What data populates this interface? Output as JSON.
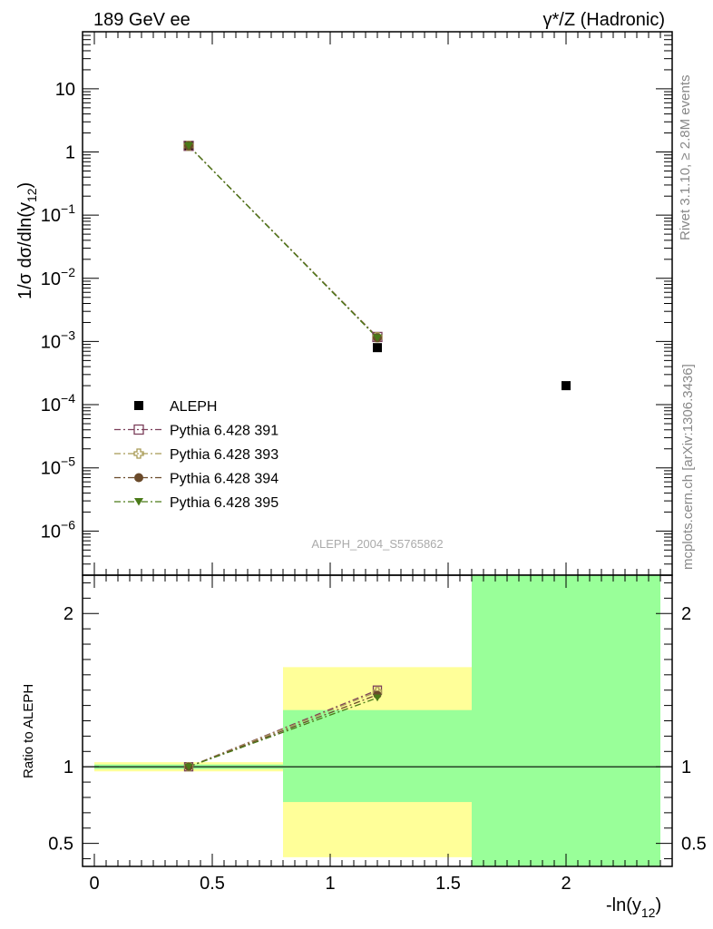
{
  "header": {
    "left_title": "189 GeV ee",
    "right_title": "γ*/Z (Hadronic)"
  },
  "side_text": {
    "rivet": "Rivet 3.1.10, ≥ 2.8M events",
    "mcplots": "mcplots.cern.ch [arXiv:1306.3436]"
  },
  "watermark": "ALEPH_2004_S5765862",
  "chart_data": [
    {
      "type": "scatter",
      "panel": "main",
      "ylabel": "1/σ dσ/dln(y12)",
      "xlabel": "",
      "yscale": "log",
      "xlim": [
        -0.05,
        2.45
      ],
      "ylim": [
        2e-07,
        80
      ],
      "y_ticks": [
        "10^-6",
        "10^-5",
        "10^-4",
        "10^-3",
        "10^-2",
        "10^-1",
        "1",
        "10"
      ],
      "legend_position": "left-middle",
      "series": [
        {
          "name": "ALEPH",
          "color": "#000000",
          "marker": "square-filled",
          "points": [
            {
              "x": 0.4,
              "y": 1.25
            },
            {
              "x": 1.2,
              "y": 0.0008
            },
            {
              "x": 2.0,
              "y": 0.0002
            }
          ]
        },
        {
          "name": "Pythia 6.428 391",
          "color": "#7b3f5a",
          "marker": "square-open",
          "line": "dashdot",
          "points": [
            {
              "x": 0.4,
              "y": 1.25
            },
            {
              "x": 1.2,
              "y": 0.00118
            }
          ]
        },
        {
          "name": "Pythia 6.428 393",
          "color": "#a89a55",
          "marker": "cross-open",
          "line": "dashdot",
          "points": [
            {
              "x": 0.4,
              "y": 1.25
            },
            {
              "x": 1.2,
              "y": 0.00117
            }
          ]
        },
        {
          "name": "Pythia 6.428 394",
          "color": "#6a4a2a",
          "marker": "circle-filled",
          "line": "dashdot",
          "points": [
            {
              "x": 0.4,
              "y": 1.25
            },
            {
              "x": 1.2,
              "y": 0.00115
            }
          ]
        },
        {
          "name": "Pythia 6.428 395",
          "color": "#4a7a18",
          "marker": "triangle-down-filled",
          "line": "dashdot",
          "points": [
            {
              "x": 0.4,
              "y": 1.25
            },
            {
              "x": 1.2,
              "y": 0.00114
            }
          ]
        }
      ]
    },
    {
      "type": "scatter",
      "panel": "ratio",
      "ylabel": "Ratio to ALEPH",
      "xlabel": "-ln(y12)",
      "xlim": [
        -0.05,
        2.45
      ],
      "ylim": [
        0.35,
        2.25
      ],
      "x_ticks": [
        0,
        0.5,
        1,
        1.5,
        2
      ],
      "x_tick_labels": [
        "0",
        "0.5",
        "1",
        "1.5",
        "2"
      ],
      "y_ticks": [
        0.5,
        1,
        2
      ],
      "y_tick_labels": [
        "0.5",
        "1",
        "2"
      ],
      "bands": [
        {
          "x0": 0.0,
          "x1": 0.8,
          "yellow": [
            0.97,
            1.03
          ],
          "green": [
            0.985,
            1.015
          ]
        },
        {
          "x0": 0.8,
          "x1": 1.6,
          "yellow": [
            0.41,
            1.65
          ],
          "green": [
            0.77,
            1.37
          ]
        },
        {
          "x0": 1.6,
          "x1": 2.4,
          "yellow": [
            0.35,
            2.25
          ],
          "green": [
            0.35,
            2.25
          ]
        }
      ],
      "band_colors": {
        "yellow": "#ffff99",
        "green": "#99ff99"
      },
      "series": [
        {
          "name": "Pythia 6.428 391",
          "color": "#7b3f5a",
          "marker": "square-open",
          "points": [
            {
              "x": 0.4,
              "y": 1.0
            },
            {
              "x": 1.2,
              "y": 1.5
            }
          ]
        },
        {
          "name": "Pythia 6.428 393",
          "color": "#a89a55",
          "marker": "cross-open",
          "points": [
            {
              "x": 0.4,
              "y": 1.0
            },
            {
              "x": 1.2,
              "y": 1.49
            }
          ]
        },
        {
          "name": "Pythia 6.428 394",
          "color": "#6a4a2a",
          "marker": "circle-filled",
          "points": [
            {
              "x": 0.4,
              "y": 1.0
            },
            {
              "x": 1.2,
              "y": 1.47
            }
          ]
        },
        {
          "name": "Pythia 6.428 395",
          "color": "#4a7a18",
          "marker": "triangle-down-filled",
          "points": [
            {
              "x": 0.4,
              "y": 1.0
            },
            {
              "x": 1.2,
              "y": 1.45
            }
          ]
        }
      ]
    }
  ]
}
